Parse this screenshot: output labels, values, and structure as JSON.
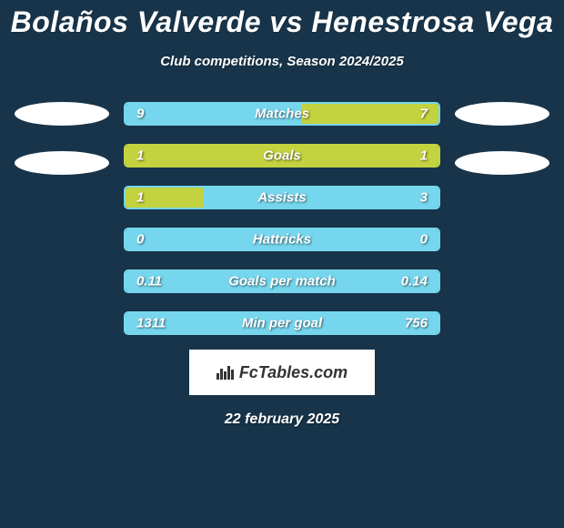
{
  "background_color": "#17344a",
  "title": "Bolaños Valverde vs Henestrosa Vega",
  "title_color": "#ffffff",
  "subtitle": "Club competitions, Season 2024/2025",
  "subtitle_color": "#ffffff",
  "left_player": {
    "ellipse_color": "#ffffff",
    "ellipses_count": 2
  },
  "right_player": {
    "ellipse_color": "#ffffff",
    "ellipses_count": 2
  },
  "stats": [
    {
      "label": "Matches",
      "left_value": "9",
      "right_value": "7",
      "left_fill_pct": 56,
      "right_fill_pct": 44,
      "left_color": "#76d6ed",
      "right_color": "#c3d23f",
      "border_color": "#76d6ed"
    },
    {
      "label": "Goals",
      "left_value": "1",
      "right_value": "1",
      "left_fill_pct": 50,
      "right_fill_pct": 50,
      "left_color": "#c3d23f",
      "right_color": "#c3d23f",
      "border_color": "#c3d23f"
    },
    {
      "label": "Assists",
      "left_value": "1",
      "right_value": "3",
      "left_fill_pct": 25,
      "right_fill_pct": 75,
      "left_color": "#c3d23f",
      "right_color": "#76d6ed",
      "border_color": "#76d6ed"
    },
    {
      "label": "Hattricks",
      "left_value": "0",
      "right_value": "0",
      "left_fill_pct": 50,
      "right_fill_pct": 50,
      "left_color": "#76d6ed",
      "right_color": "#76d6ed",
      "border_color": "#76d6ed"
    },
    {
      "label": "Goals per match",
      "left_value": "0.11",
      "right_value": "0.14",
      "left_fill_pct": 44,
      "right_fill_pct": 56,
      "left_color": "#76d6ed",
      "right_color": "#76d6ed",
      "border_color": "#76d6ed"
    },
    {
      "label": "Min per goal",
      "left_value": "1311",
      "right_value": "756",
      "left_fill_pct": 63,
      "right_fill_pct": 37,
      "left_color": "#76d6ed",
      "right_color": "#76d6ed",
      "border_color": "#76d6ed"
    }
  ],
  "footer_brand": "FcTables.com",
  "date": "22 february 2025",
  "date_color": "#ffffff"
}
